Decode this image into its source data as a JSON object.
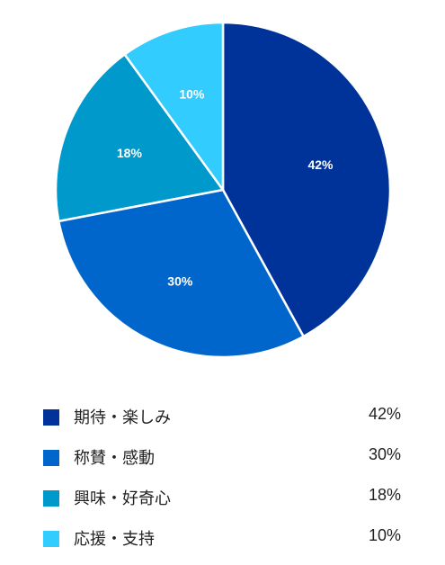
{
  "chart_data": {
    "type": "pie",
    "title": "",
    "slices": [
      {
        "label": "期待・楽しみ",
        "value": 42,
        "display": "42%",
        "color": "#003399"
      },
      {
        "label": "称賛・感動",
        "value": 30,
        "display": "30%",
        "color": "#0066cc"
      },
      {
        "label": "興味・好奇心",
        "value": 18,
        "display": "18%",
        "color": "#0099cc"
      },
      {
        "label": "応援・支持",
        "value": 10,
        "display": "10%",
        "color": "#33ccff"
      }
    ],
    "start": "12 o'clock",
    "direction": "clockwise",
    "legend": "bottom"
  }
}
